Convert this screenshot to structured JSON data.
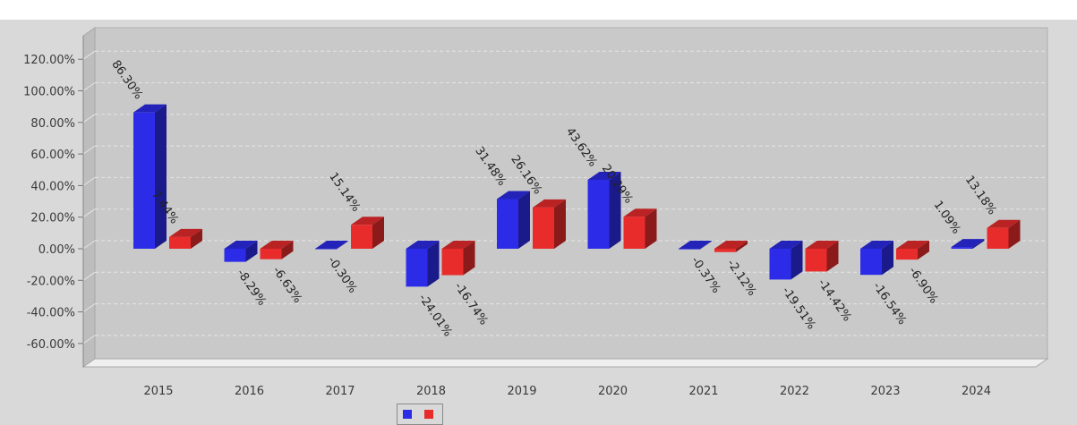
{
  "chart_data": {
    "type": "bar",
    "title": "",
    "xlabel": "",
    "ylabel": "",
    "categories": [
      "2015",
      "2016",
      "2017",
      "2018",
      "2019",
      "2020",
      "2021",
      "2022",
      "2023",
      "2024"
    ],
    "series": [
      {
        "name": "",
        "color": "#2c2ce8",
        "values": [
          86.3,
          -8.29,
          -0.3,
          -24.01,
          31.48,
          43.62,
          -0.37,
          -19.51,
          -16.54,
          1.09
        ],
        "labels": [
          "86.30%",
          "-8.29%",
          "-0.30%",
          "-24.01%",
          "31.48%",
          "43.62%",
          "-0.37%",
          "-19.51%",
          "-16.54%",
          "1.09%"
        ]
      },
      {
        "name": "",
        "color": "#e82c2c",
        "values": [
          7.44,
          -6.63,
          15.14,
          -16.74,
          26.16,
          20.29,
          -2.12,
          -14.42,
          -6.9,
          13.18
        ],
        "labels": [
          "7.44%",
          "-6.63%",
          "15.14%",
          "-16.74%",
          "26.16%",
          "20.29%",
          "-2.12%",
          "-14.42%",
          "-6.90%",
          "13.18%"
        ]
      }
    ],
    "yticks": [
      "120.00%",
      "100.00%",
      "80.00%",
      "60.00%",
      "40.00%",
      "20.00%",
      "0.00%",
      "-20.00%",
      "-40.00%",
      "-60.00%"
    ],
    "ytick_values": [
      120,
      100,
      80,
      60,
      40,
      20,
      0,
      -20,
      -40,
      -60
    ],
    "ylim": [
      -70,
      130
    ],
    "grid": true,
    "legend_position": "bottom-center",
    "style": "3d-bar"
  }
}
